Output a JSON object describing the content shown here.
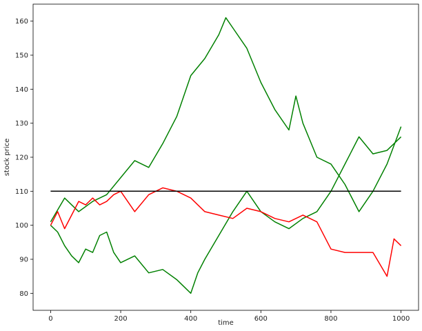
{
  "chart_data": {
    "type": "line",
    "title": "",
    "xlabel": "time",
    "ylabel": "stock price",
    "xlim": [
      -50,
      1050
    ],
    "ylim": [
      75,
      165
    ],
    "xticks": [
      0,
      200,
      400,
      600,
      800,
      1000
    ],
    "yticks": [
      80,
      90,
      100,
      110,
      120,
      130,
      140,
      150,
      160
    ],
    "grid": false,
    "legend": "none",
    "series": [
      {
        "color": "#008000",
        "x": [
          0,
          40,
          80,
          120,
          160,
          200,
          240,
          280,
          320,
          360,
          400,
          440,
          480,
          500,
          520,
          560,
          600,
          640,
          680,
          700,
          720,
          760,
          800,
          840,
          880,
          920,
          960,
          1000
        ],
        "y": [
          101,
          108,
          104,
          107,
          109,
          114,
          119,
          117,
          124,
          132,
          144,
          149,
          156,
          161,
          158,
          152,
          142,
          134,
          128,
          138,
          130,
          120,
          118,
          112,
          104,
          110,
          118,
          129
        ]
      },
      {
        "color": "#008000",
        "x": [
          0,
          20,
          40,
          60,
          80,
          100,
          120,
          140,
          160,
          180,
          200,
          240,
          280,
          320,
          360,
          400,
          420,
          440,
          480,
          520,
          560,
          600,
          640,
          680,
          720,
          760,
          800,
          840,
          880,
          920,
          960,
          1000
        ],
        "y": [
          100,
          98,
          94,
          91,
          89,
          93,
          92,
          97,
          98,
          92,
          89,
          91,
          86,
          87,
          84,
          80,
          86,
          90,
          97,
          104,
          110,
          104,
          101,
          99,
          102,
          104,
          110,
          118,
          126,
          121,
          122,
          126
        ]
      },
      {
        "color": "#ff0000",
        "x": [
          0,
          20,
          40,
          60,
          80,
          100,
          120,
          140,
          160,
          180,
          200,
          240,
          280,
          320,
          360,
          400,
          440,
          480,
          520,
          560,
          600,
          640,
          680,
          720,
          760,
          800,
          840,
          880,
          920,
          960,
          980,
          1000
        ],
        "y": [
          100,
          104,
          99,
          103,
          107,
          106,
          108,
          106,
          107,
          109,
          110,
          104,
          109,
          111,
          110,
          108,
          104,
          103,
          102,
          105,
          104,
          102,
          101,
          103,
          101,
          93,
          92,
          92,
          92,
          85,
          96,
          94
        ]
      },
      {
        "color": "#000000",
        "x": [
          0,
          1000
        ],
        "y": [
          110,
          110
        ]
      }
    ]
  }
}
